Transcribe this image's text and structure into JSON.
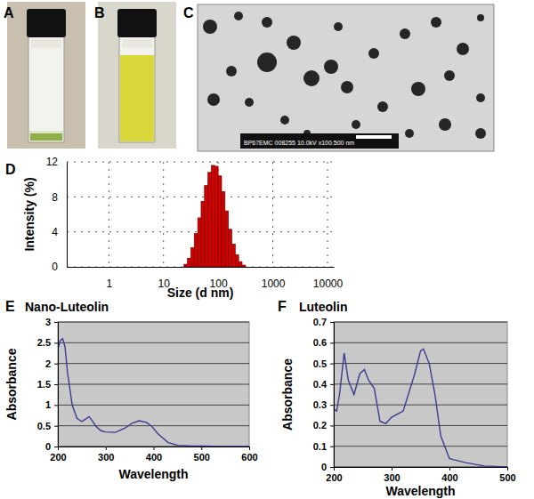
{
  "panel_labels": [
    "A",
    "B",
    "C"
  ],
  "tem_caption": "BP67EMC 008255 10.0kV x100.500 nm",
  "chart_data": [
    {
      "type": "histogram",
      "annotations": [
        "D"
      ],
      "x_label": "Size (d nm)",
      "y_label": "Intensity (%)",
      "bins": [
        23.7,
        27.4,
        31.6,
        36.5,
        42.2,
        48.7,
        56.2,
        64.9,
        75.0,
        86.6,
        100,
        115.5,
        133.4,
        154.0,
        177.8,
        205.4,
        237.1,
        273.8,
        316.2
      ],
      "values": [
        0.3,
        1.0,
        2.2,
        3.8,
        5.6,
        7.5,
        9.3,
        10.8,
        11.6,
        11.5,
        10.4,
        8.6,
        6.4,
        4.3,
        2.6,
        1.4,
        0.6,
        0.2
      ],
      "color": "#d40000",
      "log": "x",
      "xlim": [
        0.17,
        13000
      ],
      "xticks": [
        1,
        10,
        100,
        1000,
        10000
      ],
      "ylim": [
        0,
        12
      ],
      "yticks": [
        0,
        4,
        8,
        12
      ],
      "grid": true
    },
    {
      "type": "line",
      "annotations": [
        "E"
      ],
      "title": "Nano-Luteolin",
      "x_label": "Wavelength",
      "y_label": "Absorbance",
      "x": [
        200,
        205,
        210,
        215,
        220,
        230,
        240,
        250,
        258,
        265,
        272,
        280,
        290,
        300,
        320,
        340,
        355,
        370,
        385,
        395,
        410,
        430,
        450,
        480,
        500,
        550,
        600
      ],
      "values": [
        2.35,
        2.55,
        2.6,
        2.4,
        1.8,
        1.0,
        0.68,
        0.6,
        0.66,
        0.72,
        0.62,
        0.48,
        0.38,
        0.35,
        0.34,
        0.44,
        0.56,
        0.62,
        0.58,
        0.5,
        0.3,
        0.1,
        0.03,
        0.01,
        0.01,
        0,
        0
      ],
      "color": "#3b3b8f",
      "xlim": [
        200,
        600
      ],
      "xticks": [
        200,
        300,
        400,
        500,
        600
      ],
      "ylim": [
        0,
        3
      ],
      "yticks": [
        0,
        0.5,
        1,
        1.5,
        2,
        2.5,
        3
      ],
      "grid": true
    },
    {
      "type": "line",
      "annotations": [
        "F"
      ],
      "title": "Luteolin",
      "x_label": "Wavelength",
      "y_label": "Absorbance",
      "x": [
        200,
        205,
        210,
        218,
        225,
        235,
        245,
        253,
        260,
        270,
        280,
        290,
        300,
        320,
        340,
        350,
        355,
        365,
        375,
        385,
        400,
        430,
        460,
        500
      ],
      "values": [
        0.28,
        0.27,
        0.35,
        0.55,
        0.42,
        0.35,
        0.45,
        0.47,
        0.42,
        0.38,
        0.22,
        0.21,
        0.24,
        0.27,
        0.45,
        0.56,
        0.57,
        0.5,
        0.35,
        0.15,
        0.04,
        0.02,
        0.005,
        0
      ],
      "color": "#3b3b8f",
      "xlim": [
        200,
        500
      ],
      "xticks": [
        200,
        300,
        400,
        500
      ],
      "ylim": [
        0,
        0.7
      ],
      "yticks": [
        0,
        0.1,
        0.2,
        0.3,
        0.4,
        0.5,
        0.6,
        0.7
      ],
      "grid": true
    }
  ]
}
